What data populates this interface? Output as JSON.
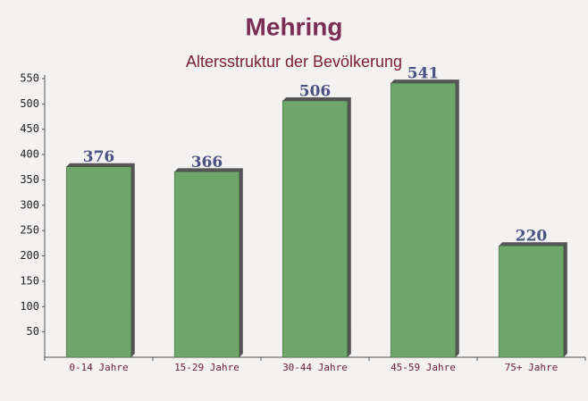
{
  "chart_data": {
    "type": "bar",
    "title": "Mehring",
    "subtitle": "Altersstruktur der Bevölkerung",
    "categories": [
      "0-14 Jahre",
      "15-29 Jahre",
      "30-44 Jahre",
      "45-59 Jahre",
      "75+ Jahre"
    ],
    "values": [
      376,
      366,
      506,
      541,
      220
    ],
    "color": "#6fa66b",
    "ylim": [
      0,
      550
    ],
    "yticks": [
      50,
      100,
      150,
      200,
      250,
      300,
      350,
      400,
      450,
      500,
      550
    ],
    "grid": false
  }
}
